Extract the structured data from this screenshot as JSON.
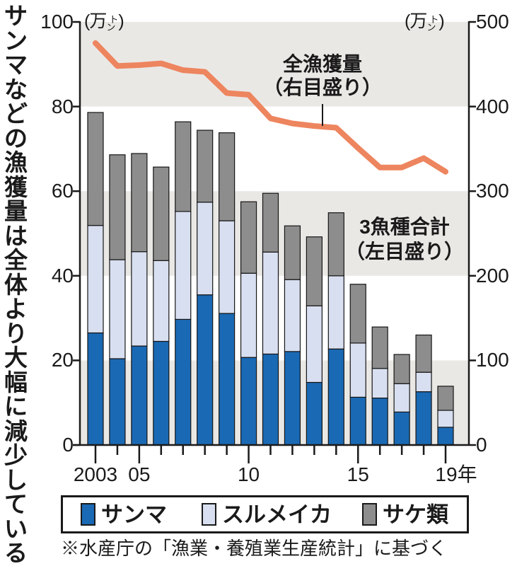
{
  "title": "サンマなどの漁獲量は全体より大幅に減少している",
  "units": {
    "left": {
      "open": "(万",
      "ton_top": "ト",
      "ton_bottom": "ン",
      "close": ")"
    },
    "right": {
      "open": "(万",
      "ton_top": "ト",
      "ton_bottom": "ン",
      "close": ")"
    }
  },
  "annotations": {
    "line_label_1": "全漁獲量",
    "line_label_2": "（右目盛り）",
    "bars_label_1": "3魚種合計",
    "bars_label_2": "（左目盛り）"
  },
  "legend": {
    "items": [
      {
        "label": "サンマ",
        "color": "#1a69b4"
      },
      {
        "label": "スルメイカ",
        "color": "#d8dff0"
      },
      {
        "label": "サケ類",
        "color": "#8d8d8d"
      }
    ]
  },
  "footnote": "※水産庁の「漁業・養殖業生産統計」に基づく",
  "colors": {
    "saury": "#1a69b4",
    "squid": "#d8dff0",
    "salmon": "#8d8d8d",
    "total_line": "#ed855f",
    "band": "#eae8e5",
    "axis": "#1a1a1a",
    "bar_stroke": "#161616"
  },
  "chart_data": {
    "type": "combo",
    "title": "サンマなどの漁獲量は全体より大幅に減少している",
    "x": [
      2003,
      2004,
      2005,
      2006,
      2007,
      2008,
      2009,
      2010,
      2011,
      2012,
      2013,
      2014,
      2015,
      2016,
      2017,
      2018,
      2019
    ],
    "series": [
      {
        "name": "サンマ",
        "type": "bar",
        "stacked": true,
        "axis": "left",
        "color": "#1a69b4",
        "values": [
          26.5,
          20.4,
          23.4,
          24.5,
          29.7,
          35.5,
          31.1,
          20.7,
          21.5,
          22.1,
          14.8,
          22.7,
          11.3,
          11.1,
          7.8,
          12.6,
          4.2
        ]
      },
      {
        "name": "スルメイカ",
        "type": "bar",
        "stacked": true,
        "axis": "left",
        "color": "#d8dff0",
        "values": [
          25.4,
          23.4,
          22.3,
          19.1,
          25.5,
          21.9,
          21.9,
          19.9,
          24.1,
          17.0,
          18.1,
          17.3,
          12.8,
          7.0,
          6.7,
          4.6,
          4.0
        ]
      },
      {
        "name": "サケ類",
        "type": "bar",
        "stacked": true,
        "axis": "left",
        "color": "#8d8d8d",
        "values": [
          26.7,
          24.8,
          23.2,
          22.1,
          21.2,
          17.0,
          20.8,
          16.9,
          13.9,
          12.7,
          16.3,
          14.9,
          13.9,
          9.8,
          6.9,
          8.8,
          5.7
        ]
      },
      {
        "name": "全漁獲量",
        "type": "line",
        "axis": "right",
        "color": "#ed855f",
        "values": [
          475,
          448,
          449,
          451,
          443,
          441,
          416,
          414,
          386,
          380,
          377,
          375,
          351,
          328,
          328,
          339,
          323
        ]
      }
    ],
    "left_axis": {
      "unit": "万トン",
      "range": [
        0,
        100
      ],
      "ticks": [
        0,
        20,
        40,
        60,
        80,
        100
      ]
    },
    "right_axis": {
      "unit": "万トン",
      "range": [
        0,
        500
      ],
      "ticks": [
        0,
        100,
        200,
        300,
        400,
        500
      ]
    },
    "x_tick_labels": [
      {
        "year": 2003,
        "label": "2003"
      },
      {
        "year": 2005,
        "label": "05"
      },
      {
        "year": 2010,
        "label": "10"
      },
      {
        "year": 2015,
        "label": "15"
      },
      {
        "year": 2019,
        "label": "19年"
      }
    ],
    "grid": "alternating-bands",
    "legend_position": "bottom"
  }
}
